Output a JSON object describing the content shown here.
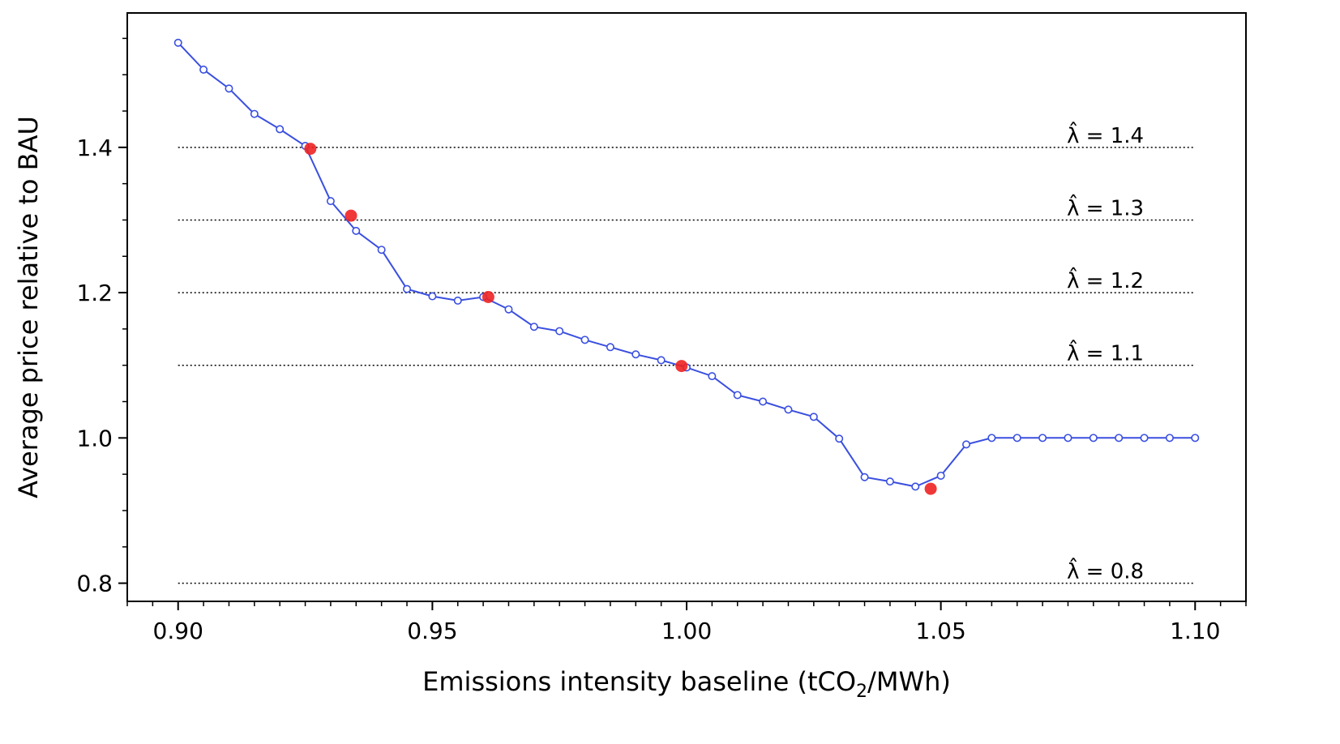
{
  "chart_data": {
    "type": "line",
    "xlabel": "Emissions intensity baseline (tCO",
    "xlabel_sub": "2",
    "xlabel_tail": "/MWh)",
    "ylabel": "Average price relative to BAU",
    "xlim": [
      0.89,
      1.11
    ],
    "ylim": [
      0.775,
      1.585
    ],
    "x_ticks": [
      0.9,
      0.95,
      1.0,
      1.05,
      1.1
    ],
    "x_tick_labels": [
      "0.90",
      "0.95",
      "1.00",
      "1.05",
      "1.10"
    ],
    "x_minor_step": 0.005,
    "y_ticks": [
      0.8,
      1.0,
      1.2,
      1.4
    ],
    "y_tick_labels": [
      "0.8",
      "1.0",
      "1.2",
      "1.4"
    ],
    "y_minor_step": 0.05,
    "grid": false,
    "colors": {
      "series": "#3a4fe0",
      "highlight": "#ee2222",
      "reference": "#000000"
    },
    "series": [
      {
        "marker": "open-circle",
        "x": [
          0.9,
          0.905,
          0.91,
          0.915,
          0.92,
          0.925,
          0.93,
          0.935,
          0.94,
          0.945,
          0.95,
          0.955,
          0.96,
          0.965,
          0.97,
          0.975,
          0.98,
          0.985,
          0.99,
          0.995,
          1.0,
          1.005,
          1.01,
          1.015,
          1.02,
          1.025,
          1.03,
          1.035,
          1.04,
          1.045,
          1.05,
          1.055,
          1.06,
          1.065,
          1.07,
          1.075,
          1.08,
          1.085,
          1.09,
          1.095,
          1.1
        ],
        "y": [
          1.544,
          1.507,
          1.481,
          1.446,
          1.425,
          1.402,
          1.326,
          1.285,
          1.259,
          1.205,
          1.195,
          1.189,
          1.194,
          1.177,
          1.153,
          1.147,
          1.135,
          1.125,
          1.115,
          1.107,
          1.097,
          1.085,
          1.059,
          1.05,
          1.039,
          1.029,
          0.999,
          0.946,
          0.94,
          0.933,
          0.948,
          0.991,
          1.0,
          1.0,
          1.0,
          1.0,
          1.0,
          1.0,
          1.0,
          1.0,
          1.0
        ]
      },
      {
        "marker": "filled-circle",
        "x": [
          0.926,
          0.934,
          0.961,
          0.999,
          1.048
        ],
        "y": [
          1.398,
          1.306,
          1.194,
          1.099,
          0.93
        ]
      }
    ],
    "reference_lines": [
      {
        "y": 1.4,
        "value_label": "1.4"
      },
      {
        "y": 1.3,
        "value_label": "1.3"
      },
      {
        "y": 1.2,
        "value_label": "1.2"
      },
      {
        "y": 1.1,
        "value_label": "1.1"
      },
      {
        "y": 0.8,
        "value_label": "0.8"
      }
    ],
    "reference_symbol": "λ̂",
    "reference_eq": " = ",
    "reference_x_range": [
      0.9,
      1.1
    ]
  }
}
